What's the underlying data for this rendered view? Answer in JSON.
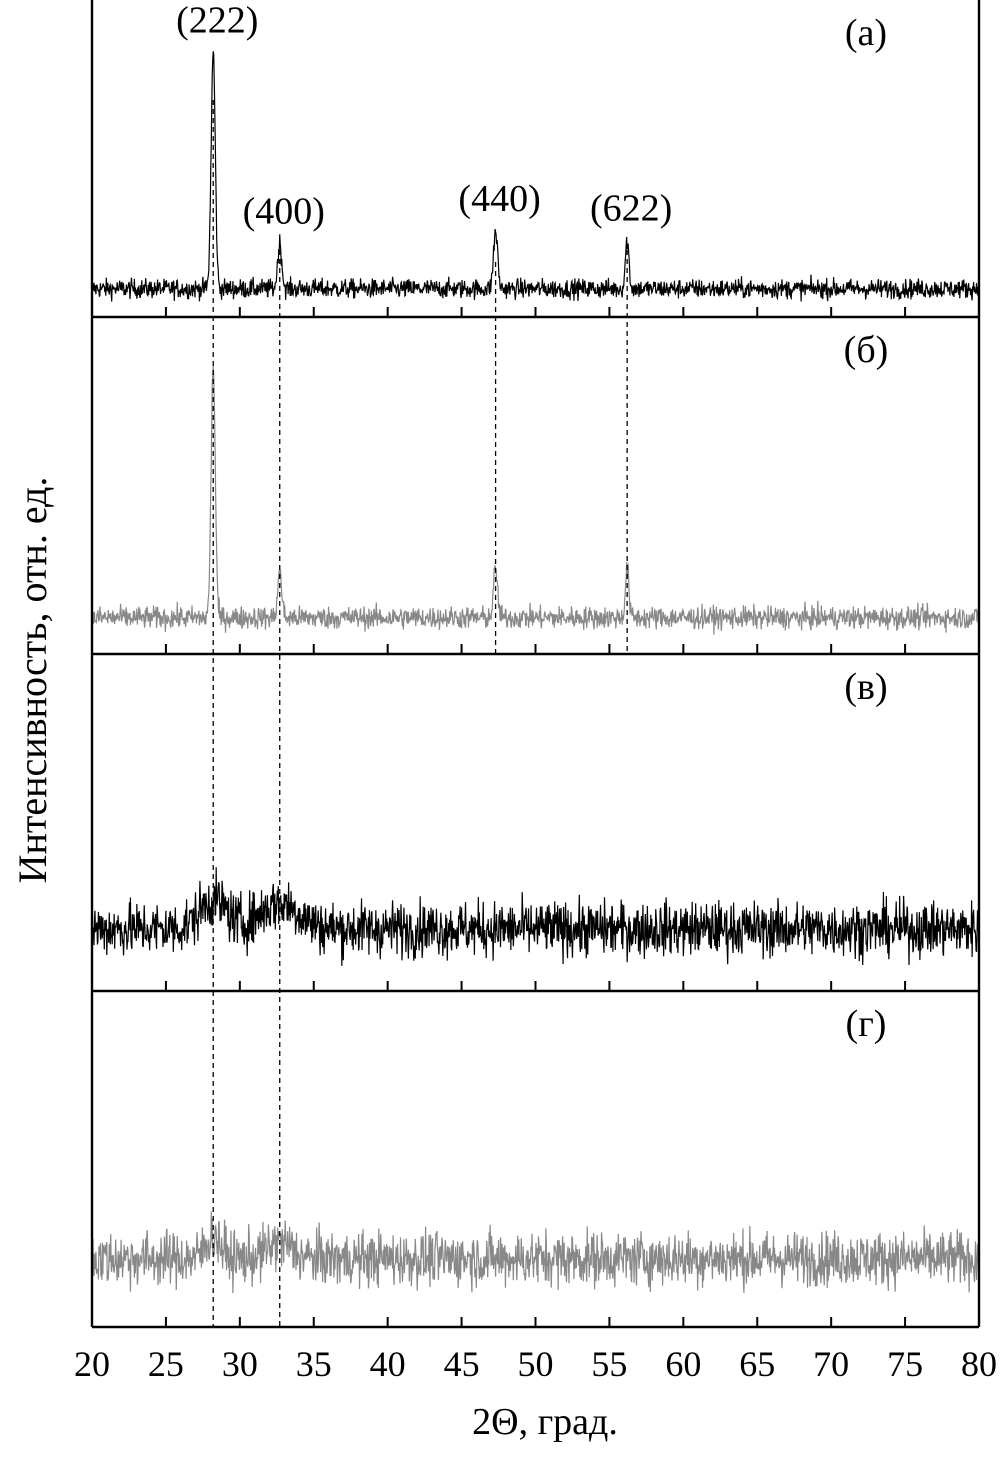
{
  "chart_data": {
    "type": "line",
    "xlabel": "2Θ, град.",
    "ylabel": "Интенсивность, отн. ед.",
    "xlim": [
      20,
      80
    ],
    "xticks": [
      20,
      25,
      30,
      35,
      40,
      45,
      50,
      55,
      60,
      65,
      70,
      75,
      80
    ],
    "grid": false,
    "reference_lines": [
      28.2,
      32.7,
      47.3,
      56.2
    ],
    "panels": [
      {
        "label": "(a)",
        "color": "#000000",
        "ylim": [
          0,
          100
        ],
        "baseline": 8,
        "noise": 2.3,
        "peaks": [
          {
            "x": 28.2,
            "height": 78,
            "width": 0.14,
            "label": "(222)"
          },
          {
            "x": 32.7,
            "height": 15,
            "width": 0.14,
            "label": "(400)"
          },
          {
            "x": 47.3,
            "height": 19,
            "width": 0.14,
            "label": "(440)"
          },
          {
            "x": 56.2,
            "height": 16,
            "width": 0.12,
            "label": "(622)"
          }
        ]
      },
      {
        "label": "(б)",
        "color": "#888888",
        "ylim": [
          0,
          100
        ],
        "baseline": 10,
        "noise": 2.5,
        "peaks": [
          {
            "x": 28.2,
            "height": 78,
            "width": 0.14
          },
          {
            "x": 32.7,
            "height": 14,
            "width": 0.14
          },
          {
            "x": 47.3,
            "height": 15,
            "width": 0.14
          },
          {
            "x": 56.2,
            "height": 15,
            "width": 0.12
          }
        ]
      },
      {
        "label": "(в)",
        "color": "#000000",
        "ylim": [
          0,
          100
        ],
        "baseline": 18,
        "noise": 6,
        "peaks": [
          {
            "x": 28.2,
            "height": 9,
            "width": 0.9
          },
          {
            "x": 32.7,
            "height": 8,
            "width": 1.3
          }
        ]
      },
      {
        "label": "(г)",
        "color": "#888888",
        "ylim": [
          0,
          100
        ],
        "baseline": 20,
        "noise": 6,
        "peaks": [
          {
            "x": 28.2,
            "height": 7,
            "width": 0.5
          },
          {
            "x": 32.7,
            "height": 5,
            "width": 0.8
          }
        ]
      }
    ]
  }
}
